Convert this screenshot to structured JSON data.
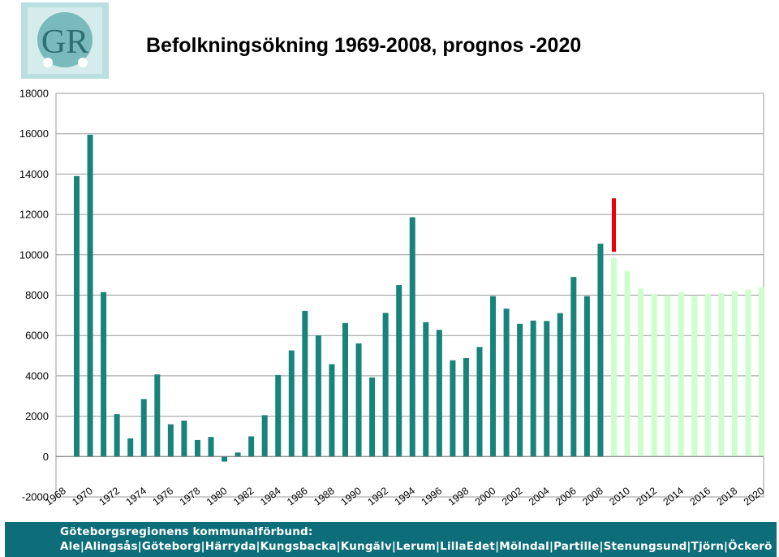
{
  "title": "Befolkningsökning 1969-2008, prognos -2020",
  "logo": {
    "text": "GR"
  },
  "footer": {
    "line1": "Göteborgsregionens kommunalförbund:",
    "line2": "Ale|Alingsås|Göteborg|Härryda|Kungsbacka|Kungälv|Lerum|LillaEdet|Mölndal|Partille|Stenungsund|Tjörn|Öckerö"
  },
  "colors": {
    "historic": "#17837b",
    "forecast": "#ccffcc",
    "highlight": "#e8000d",
    "gridline": "#9a9a9a",
    "footer_bg": "#0d6e79"
  },
  "chart_data": {
    "type": "bar",
    "title": "Befolkningsökning 1969-2008, prognos -2020",
    "ylim": [
      -2000,
      18000
    ],
    "yticks": [
      -2000,
      0,
      2000,
      4000,
      6000,
      8000,
      10000,
      12000,
      14000,
      16000,
      18000
    ],
    "xtick_labels": [
      "1968",
      "1970",
      "1972",
      "1974",
      "1976",
      "1978",
      "1980",
      "1982",
      "1984",
      "1986",
      "1988",
      "1990",
      "1992",
      "1994",
      "1996",
      "1998",
      "2000",
      "2002",
      "2004",
      "2006",
      "2008",
      "2010",
      "2012",
      "2014",
      "2016",
      "2018",
      "2020"
    ],
    "grid": true,
    "series": [
      {
        "x": [
          1969,
          1970,
          1971,
          1972,
          1973,
          1974,
          1975,
          1976,
          1977,
          1978,
          1979,
          1980,
          1981,
          1982,
          1983,
          1984,
          1985,
          1986,
          1987,
          1988,
          1989,
          1990,
          1991,
          1992,
          1993,
          1994,
          1995,
          1996,
          1997,
          1998,
          1999,
          2000,
          2001,
          2002,
          2003,
          2004,
          2005,
          2006,
          2007,
          2008
        ],
        "values": [
          13900,
          15950,
          8150,
          2100,
          900,
          2850,
          4070,
          1600,
          1780,
          820,
          970,
          -250,
          200,
          1000,
          2050,
          4040,
          5260,
          7220,
          6000,
          4580,
          6620,
          5610,
          3920,
          7120,
          8500,
          11860,
          6660,
          6280,
          4770,
          4880,
          5430,
          7950,
          7330,
          6580,
          6740,
          6720,
          7110,
          8900,
          7950,
          10550
        ]
      },
      {
        "x": [
          2009,
          2010,
          2011,
          2012,
          2013,
          2014,
          2015,
          2016,
          2017,
          2018,
          2019,
          2020
        ],
        "values": [
          9850,
          9180,
          8320,
          8050,
          7990,
          8150,
          7950,
          8050,
          8100,
          8200,
          8280,
          8380
        ]
      },
      {
        "x": [
          2009
        ],
        "values": [
          12800
        ],
        "base": [
          10150
        ]
      }
    ]
  }
}
